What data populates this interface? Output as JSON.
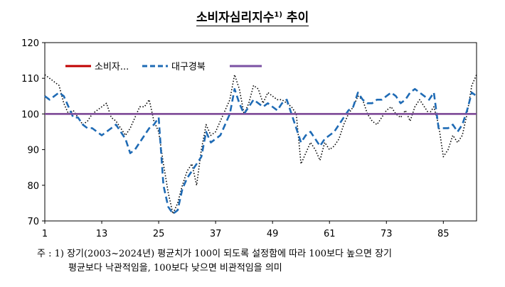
{
  "title": {
    "text": "소비자심리지수",
    "sup": "1)",
    "suffix": " 추이"
  },
  "note": {
    "line1": "주 : 1) 장기(2003~2024년) 평균치가 100이 되도록 설정함에 따라 100보다 높으면 장기",
    "line2": "평균보다 낙관적임을, 100보다 낮으면 비관적임을 의미"
  },
  "chart_data": {
    "type": "line",
    "xlim": [
      1,
      92
    ],
    "ylim": [
      70,
      120
    ],
    "yticks": [
      70,
      80,
      90,
      100,
      110,
      120
    ],
    "xticks": [
      1,
      13,
      25,
      37,
      49,
      61,
      73,
      85
    ],
    "grid": false,
    "legend_position": "top-left",
    "colors": {
      "red": "#c00000",
      "blue": "#1f6bb5",
      "black": "#000000",
      "purple": "#7b52a3"
    },
    "series": [
      {
        "name": "소비자...",
        "style": "solid",
        "color": "#c00000",
        "values": [
          100,
          100,
          100,
          100,
          100,
          100,
          100,
          100,
          100,
          100,
          100,
          100,
          100,
          100,
          100,
          100,
          100,
          100,
          100,
          100,
          100,
          100,
          100,
          100,
          100,
          100,
          100,
          100,
          100,
          100,
          100,
          100,
          100,
          100,
          100,
          100,
          100,
          100,
          100,
          100,
          100,
          100,
          100,
          100,
          100,
          100,
          100,
          100,
          100,
          100,
          100,
          100,
          100,
          100,
          100,
          100,
          100,
          100,
          100,
          100,
          100,
          100,
          100,
          100,
          100,
          100,
          100,
          100,
          100,
          100,
          100,
          100,
          100,
          100,
          100,
          100,
          100,
          100,
          100,
          100,
          100,
          100,
          100,
          100,
          100,
          100,
          100,
          100,
          100,
          100,
          100,
          100
        ]
      },
      {
        "name": "",
        "style": "dotted",
        "color": "#000000",
        "values": [
          111,
          110,
          109,
          108,
          103,
          100,
          101,
          99,
          97,
          98,
          100,
          101,
          102,
          103,
          99,
          98,
          96,
          94,
          96,
          99,
          102,
          102,
          104,
          98,
          95,
          86,
          78,
          72,
          75,
          80,
          84,
          86,
          80,
          90,
          97,
          94,
          95,
          98,
          101,
          104,
          111,
          107,
          100,
          103,
          108,
          107,
          103,
          106,
          105,
          104,
          104,
          103,
          102,
          100,
          86,
          89,
          92,
          90,
          87,
          92,
          90,
          91,
          93,
          97,
          100,
          102,
          105,
          104,
          100,
          98,
          97,
          99,
          101,
          102,
          100,
          99,
          101,
          98,
          102,
          104,
          102,
          100,
          102,
          97,
          88,
          90,
          94,
          92,
          94,
          100,
          108,
          111
        ]
      },
      {
        "name": "대구경북",
        "style": "dashed",
        "color": "#1f6bb5",
        "values": [
          105,
          104,
          105,
          106,
          105,
          102,
          99,
          99,
          97,
          96,
          96,
          95,
          94,
          95,
          96,
          97,
          95,
          93,
          89,
          90,
          92,
          94,
          96,
          97,
          99,
          80,
          74,
          72,
          73,
          79,
          82,
          84,
          86,
          88,
          95,
          92,
          93,
          94,
          97,
          100,
          107,
          103,
          100,
          102,
          104,
          103,
          102,
          103,
          102,
          101,
          103,
          104,
          100,
          96,
          92,
          94,
          95,
          93,
          91,
          93,
          94,
          95,
          97,
          99,
          101,
          102,
          106,
          104,
          103,
          103,
          104,
          104,
          105,
          106,
          105,
          103,
          104,
          106,
          107,
          106,
          105,
          104,
          106,
          96,
          96,
          96,
          97,
          95,
          97,
          101,
          106,
          105
        ]
      },
      {
        "name": "",
        "style": "solid",
        "color": "#7b52a3",
        "values": [
          100,
          100,
          100,
          100,
          100,
          100,
          100,
          100,
          100,
          100,
          100,
          100,
          100,
          100,
          100,
          100,
          100,
          100,
          100,
          100,
          100,
          100,
          100,
          100,
          100,
          100,
          100,
          100,
          100,
          100,
          100,
          100,
          100,
          100,
          100,
          100,
          100,
          100,
          100,
          100,
          100,
          100,
          100,
          100,
          100,
          100,
          100,
          100,
          100,
          100,
          100,
          100,
          100,
          100,
          100,
          100,
          100,
          100,
          100,
          100,
          100,
          100,
          100,
          100,
          100,
          100,
          100,
          100,
          100,
          100,
          100,
          100,
          100,
          100,
          100,
          100,
          100,
          100,
          100,
          100,
          100,
          100,
          100,
          100,
          100,
          100,
          100,
          100,
          100,
          100,
          100,
          100
        ]
      }
    ]
  }
}
